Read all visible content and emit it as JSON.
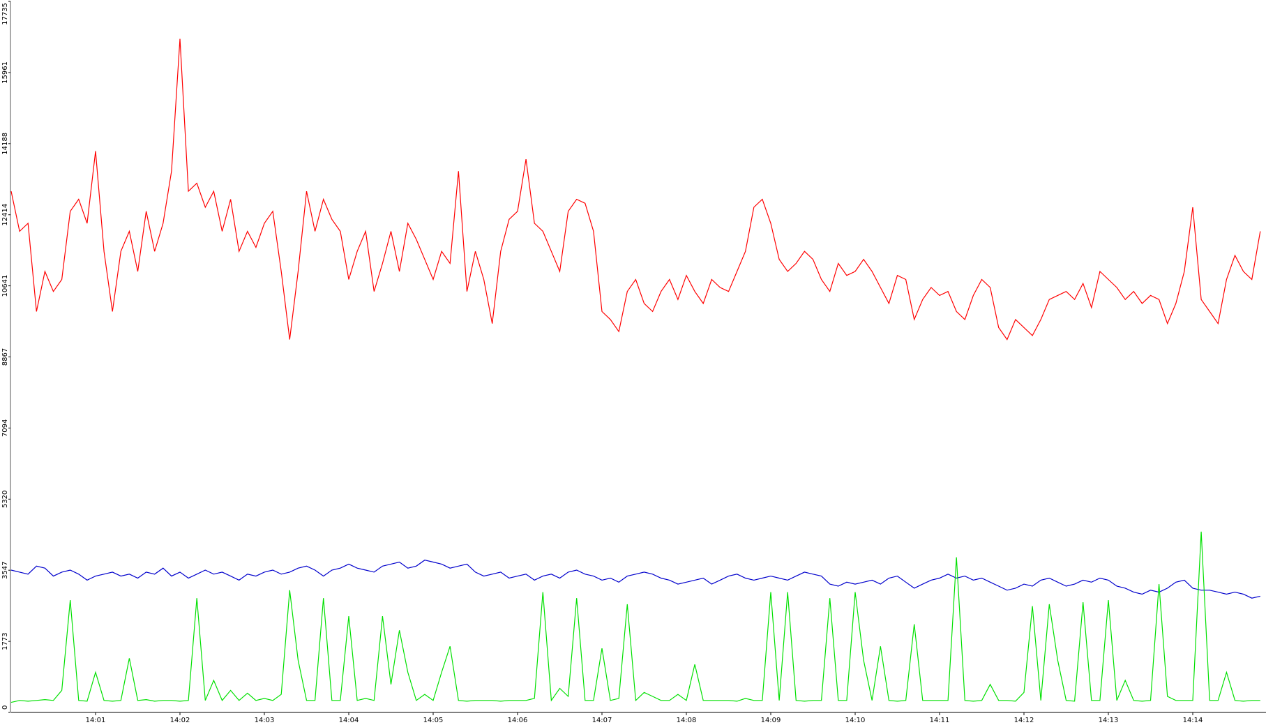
{
  "chart_data": {
    "type": "line",
    "categories": [
      null,
      null,
      null,
      null,
      null,
      null,
      null,
      null,
      null,
      null,
      "14:01",
      null,
      null,
      null,
      null,
      null,
      null,
      null,
      null,
      null,
      "14:02",
      null,
      null,
      null,
      null,
      null,
      null,
      null,
      null,
      null,
      "14:03",
      null,
      null,
      null,
      null,
      null,
      null,
      null,
      null,
      null,
      "14:04",
      null,
      null,
      null,
      null,
      null,
      null,
      null,
      null,
      null,
      "14:05",
      null,
      null,
      null,
      null,
      null,
      null,
      null,
      null,
      null,
      "14:06",
      null,
      null,
      null,
      null,
      null,
      null,
      null,
      null,
      null,
      "14:07",
      null,
      null,
      null,
      null,
      null,
      null,
      null,
      null,
      null,
      "14:08",
      null,
      null,
      null,
      null,
      null,
      null,
      null,
      null,
      null,
      "14:09",
      null,
      null,
      null,
      null,
      null,
      null,
      null,
      null,
      null,
      "14:10",
      null,
      null,
      null,
      null,
      null,
      null,
      null,
      null,
      null,
      "14:11",
      null,
      null,
      null,
      null,
      null,
      null,
      null,
      null,
      null,
      "14:12",
      null,
      null,
      null,
      null,
      null,
      null,
      null,
      null,
      null,
      "14:13",
      null,
      null,
      null,
      null,
      null,
      null,
      null,
      null,
      null,
      "14:14",
      null,
      null,
      null,
      null,
      null,
      null,
      null,
      null
    ],
    "ylim": [
      0,
      17735
    ],
    "yticks": [
      0,
      1773,
      3547,
      5320,
      7094,
      8867,
      10641,
      12414,
      14188,
      15961,
      17735
    ],
    "series": [
      {
        "color": "#ff0000",
        "values": [
          13000,
          12000,
          12200,
          10000,
          11000,
          10500,
          10800,
          12500,
          12800,
          12200,
          14000,
          11500,
          10000,
          11500,
          12000,
          11000,
          12500,
          11500,
          12200,
          13500,
          16800,
          13000,
          13200,
          12600,
          13000,
          12000,
          12800,
          11500,
          12000,
          11600,
          12200,
          12500,
          11000,
          9300,
          11000,
          13000,
          12000,
          12800,
          12300,
          12000,
          10800,
          11500,
          12000,
          10500,
          11200,
          12000,
          11000,
          12200,
          11800,
          11300,
          10800,
          11500,
          11200,
          13500,
          10500,
          11500,
          10800,
          9700,
          11500,
          12300,
          12500,
          13800,
          12200,
          12000,
          11500,
          11000,
          12500,
          12800,
          12700,
          12000,
          10000,
          9800,
          9500,
          10500,
          10800,
          10200,
          10000,
          10500,
          10800,
          10300,
          10900,
          10500,
          10200,
          10800,
          10600,
          10500,
          11000,
          11500,
          12600,
          12800,
          12200,
          11300,
          11000,
          11200,
          11500,
          11300,
          10800,
          10500,
          11200,
          10900,
          11000,
          11300,
          11000,
          10600,
          10200,
          10900,
          10800,
          9800,
          10300,
          10600,
          10400,
          10500,
          10000,
          9800,
          10400,
          10800,
          10600,
          9600,
          9300,
          9800,
          9600,
          9400,
          9800,
          10300,
          10400,
          10500,
          10300,
          10700,
          10100,
          11000,
          10800,
          10600,
          10300,
          10500,
          10200,
          10400,
          10300,
          9700,
          10200,
          11000,
          12600,
          10300,
          10000,
          9700,
          10800,
          11400,
          11000,
          10800,
          12000
        ]
      },
      {
        "color": "#0000cc",
        "values": [
          3550,
          3500,
          3450,
          3650,
          3600,
          3400,
          3500,
          3550,
          3450,
          3300,
          3400,
          3450,
          3500,
          3400,
          3450,
          3350,
          3500,
          3450,
          3600,
          3400,
          3500,
          3350,
          3450,
          3550,
          3450,
          3500,
          3400,
          3300,
          3450,
          3400,
          3500,
          3550,
          3450,
          3500,
          3600,
          3650,
          3550,
          3400,
          3550,
          3600,
          3700,
          3600,
          3550,
          3500,
          3650,
          3700,
          3750,
          3600,
          3650,
          3800,
          3750,
          3700,
          3600,
          3650,
          3700,
          3500,
          3400,
          3450,
          3500,
          3350,
          3400,
          3450,
          3300,
          3400,
          3450,
          3350,
          3500,
          3550,
          3450,
          3400,
          3300,
          3350,
          3250,
          3400,
          3450,
          3500,
          3450,
          3350,
          3300,
          3200,
          3250,
          3300,
          3350,
          3200,
          3300,
          3400,
          3450,
          3350,
          3300,
          3350,
          3400,
          3350,
          3300,
          3400,
          3500,
          3450,
          3400,
          3200,
          3150,
          3250,
          3200,
          3250,
          3300,
          3200,
          3350,
          3400,
          3250,
          3100,
          3200,
          3300,
          3350,
          3450,
          3350,
          3400,
          3300,
          3350,
          3250,
          3150,
          3050,
          3100,
          3200,
          3150,
          3300,
          3350,
          3250,
          3150,
          3200,
          3300,
          3250,
          3350,
          3300,
          3150,
          3100,
          3000,
          2950,
          3050,
          3000,
          3100,
          3250,
          3300,
          3100,
          3050,
          3050,
          3000,
          2950,
          3000,
          2950,
          2850,
          2900
        ]
      },
      {
        "color": "#00e000",
        "values": [
          250,
          300,
          280,
          300,
          320,
          300,
          550,
          2800,
          300,
          280,
          1000,
          300,
          280,
          300,
          1350,
          300,
          320,
          280,
          300,
          300,
          280,
          300,
          2850,
          300,
          800,
          300,
          550,
          300,
          480,
          300,
          350,
          300,
          450,
          3050,
          1300,
          300,
          300,
          2850,
          300,
          300,
          2400,
          300,
          350,
          300,
          2400,
          700,
          2050,
          1000,
          300,
          450,
          300,
          1000,
          1650,
          300,
          280,
          300,
          300,
          300,
          280,
          300,
          300,
          300,
          350,
          3000,
          300,
          600,
          400,
          2850,
          300,
          300,
          1600,
          300,
          350,
          2700,
          300,
          500,
          400,
          300,
          300,
          450,
          300,
          1200,
          300,
          300,
          300,
          300,
          280,
          350,
          300,
          300,
          3000,
          300,
          3000,
          300,
          280,
          300,
          300,
          2850,
          300,
          300,
          3000,
          1300,
          300,
          1650,
          300,
          280,
          300,
          2200,
          300,
          300,
          300,
          300,
          3870,
          300,
          280,
          300,
          700,
          300,
          300,
          280,
          500,
          2650,
          300,
          2700,
          1300,
          300,
          280,
          2750,
          300,
          300,
          2800,
          300,
          800,
          300,
          280,
          300,
          3200,
          400,
          300,
          300,
          300,
          4510,
          300,
          300,
          1000,
          300,
          280,
          300,
          300
        ]
      }
    ]
  }
}
